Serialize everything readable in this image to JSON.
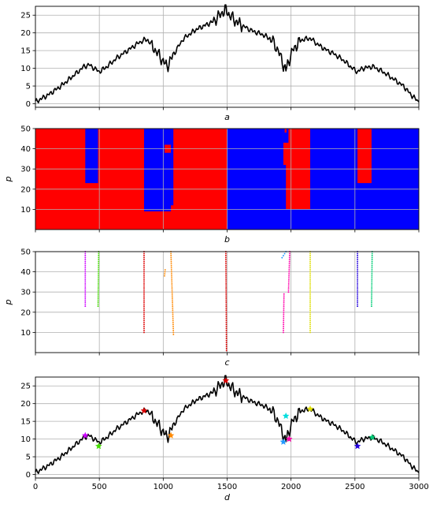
{
  "chart_data": [
    {
      "panel": "a",
      "type": "line",
      "xlabel": "a",
      "ylabel": "",
      "xlim": [
        0,
        3000
      ],
      "ylim": [
        -1,
        27.5
      ],
      "grid": true,
      "x_ticks": [
        0,
        500,
        1000,
        1500,
        2000,
        2500,
        3000
      ],
      "y_ticks": [
        0,
        5,
        10,
        15,
        20,
        25
      ],
      "y_tick_labels": [
        "0",
        "5",
        "10",
        "15",
        "20",
        "25"
      ],
      "x_tick_labels": [
        "",
        "",
        "",
        "",
        "",
        "",
        ""
      ],
      "series": [
        {
          "color": "#000000",
          "x": [
            0,
            100,
            200,
            300,
            380,
            420,
            460,
            500,
            560,
            640,
            720,
            800,
            850,
            880,
            920,
            960,
            1000,
            1030,
            1060,
            1100,
            1150,
            1200,
            1260,
            1320,
            1380,
            1430,
            1470,
            1490,
            1520,
            1560,
            1620,
            1700,
            1780,
            1850,
            1900,
            1940,
            1960,
            1980,
            2020,
            2080,
            2150,
            2200,
            2260,
            2340,
            2420,
            2480,
            2520,
            2560,
            2640,
            2720,
            2800,
            2880,
            2940,
            3000
          ],
          "y": [
            0.5,
            2.5,
            5,
            8,
            10.5,
            11,
            10,
            9,
            10.5,
            13,
            15,
            17,
            18,
            18,
            16,
            14,
            12,
            10.5,
            12.5,
            15,
            18,
            19.5,
            21,
            22,
            23,
            24.5,
            26,
            26.5,
            25,
            23.5,
            22,
            20.5,
            19.5,
            18,
            15,
            11,
            9.5,
            12,
            15.5,
            18,
            18.5,
            17,
            15.5,
            14,
            12,
            10,
            9,
            10,
            10.5,
            9,
            7,
            5,
            2.5,
            0.5
          ]
        }
      ]
    },
    {
      "panel": "b",
      "type": "heatmap",
      "xlabel": "b",
      "ylabel": "p",
      "xlim": [
        0,
        3000
      ],
      "ylim": [
        0,
        50
      ],
      "grid": true,
      "x_ticks": [
        0,
        500,
        1000,
        1500,
        2000,
        2500,
        3000
      ],
      "y_ticks": [
        10,
        20,
        30,
        40,
        50
      ],
      "y_tick_labels": [
        "10",
        "20",
        "30",
        "40",
        "50"
      ],
      "x_tick_labels": [
        "",
        "",
        "",
        "",
        "",
        "",
        ""
      ],
      "colors": {
        "up": "#ff0000",
        "down": "#0000ff"
      },
      "regions": [
        {
          "x0": 0,
          "x1": 1500,
          "y0": 0,
          "y1": 50,
          "color": "#ff0000"
        },
        {
          "x0": 1500,
          "x1": 3000,
          "y0": 0,
          "y1": 50,
          "color": "#0000ff"
        },
        {
          "x0": 390,
          "x1": 490,
          "y0": 23,
          "y1": 50,
          "color": "#0000ff"
        },
        {
          "x0": 850,
          "x1": 1060,
          "y0": 9,
          "y1": 50,
          "color": "#0000ff"
        },
        {
          "x0": 1010,
          "x1": 1060,
          "y0": 38,
          "y1": 42,
          "color": "#ff0000"
        },
        {
          "x0": 1060,
          "x1": 1080,
          "y0": 12,
          "y1": 50,
          "color": "#0000ff"
        },
        {
          "x0": 1080,
          "x1": 1500,
          "y0": 0,
          "y1": 50,
          "color": "#ff0000"
        },
        {
          "x0": 1940,
          "x1": 2150,
          "y0": 10,
          "y1": 50,
          "color": "#ff0000"
        },
        {
          "x0": 1940,
          "x1": 1960,
          "y0": 10,
          "y1": 32,
          "color": "#0000ff"
        },
        {
          "x0": 1940,
          "x1": 1980,
          "y0": 43,
          "y1": 50,
          "color": "#0000ff"
        },
        {
          "x0": 1950,
          "x1": 1965,
          "y0": 48,
          "y1": 50,
          "color": "#ff0000"
        },
        {
          "x0": 2520,
          "x1": 2630,
          "y0": 23,
          "y1": 50,
          "color": "#ff0000"
        }
      ]
    },
    {
      "panel": "c",
      "type": "scatter",
      "xlabel": "c",
      "ylabel": "p",
      "xlim": [
        0,
        3000
      ],
      "ylim": [
        0,
        50
      ],
      "grid": true,
      "x_ticks": [
        0,
        500,
        1000,
        1500,
        2000,
        2500,
        3000
      ],
      "y_ticks": [
        10,
        20,
        30,
        40,
        50
      ],
      "y_tick_labels": [
        "10",
        "20",
        "30",
        "40",
        "50"
      ],
      "x_tick_labels": [
        "",
        "",
        "",
        "",
        "",
        "",
        ""
      ],
      "series": [
        {
          "color": "#cc00ff",
          "x0": 390,
          "x1": 390,
          "p_from": 23,
          "p_to": 50
        },
        {
          "color": "#44dd00",
          "x0": 490,
          "x1": 495,
          "p_from": 23,
          "p_to": 50
        },
        {
          "color": "#dd0000",
          "x0": 850,
          "x1": 850,
          "p_from": 10,
          "p_to": 50
        },
        {
          "color": "#ff8800",
          "x0": 1080,
          "x1": 1060,
          "p_from": 9,
          "p_to": 50
        },
        {
          "color": "#ff8800",
          "x0": 1010,
          "x1": 1015,
          "p_from": 38,
          "p_to": 41
        },
        {
          "color": "#dd0000",
          "x0": 1495,
          "x1": 1490,
          "p_from": 1,
          "p_to": 50
        },
        {
          "color": "#ff00aa",
          "x0": 1940,
          "x1": 1945,
          "p_from": 10,
          "p_to": 29
        },
        {
          "color": "#ff00aa",
          "x0": 1980,
          "x1": 1990,
          "p_from": 30,
          "p_to": 50
        },
        {
          "color": "#2299ff",
          "x0": 1930,
          "x1": 1960,
          "p_from": 47,
          "p_to": 50
        },
        {
          "color": "#dddd00",
          "x0": 2150,
          "x1": 2150,
          "p_from": 10,
          "p_to": 50
        },
        {
          "color": "#2200dd",
          "x0": 2520,
          "x1": 2520,
          "p_from": 23,
          "p_to": 50
        },
        {
          "color": "#00cc77",
          "x0": 2630,
          "x1": 2635,
          "p_from": 23,
          "p_to": 50
        }
      ]
    },
    {
      "panel": "d",
      "type": "line",
      "xlabel": "d",
      "ylabel": "",
      "xlim": [
        0,
        3000
      ],
      "ylim": [
        -1,
        27.5
      ],
      "grid": true,
      "x_ticks": [
        0,
        500,
        1000,
        1500,
        2000,
        2500,
        3000
      ],
      "x_tick_labels": [
        "0",
        "500",
        "1000",
        "1500",
        "2000",
        "2500",
        "3000"
      ],
      "y_ticks": [
        0,
        5,
        10,
        15,
        20,
        25
      ],
      "y_tick_labels": [
        "0",
        "5",
        "10",
        "15",
        "20",
        "25"
      ],
      "markers": [
        {
          "x": 390,
          "y": 11,
          "color": "#cc00ff"
        },
        {
          "x": 495,
          "y": 8,
          "color": "#44dd00"
        },
        {
          "x": 850,
          "y": 18,
          "color": "#dd0000"
        },
        {
          "x": 1060,
          "y": 11,
          "color": "#ff8800"
        },
        {
          "x": 1490,
          "y": 26.5,
          "color": "#dd0000"
        },
        {
          "x": 1940,
          "y": 9.2,
          "color": "#2299ff"
        },
        {
          "x": 1960,
          "y": 16.5,
          "color": "#00dddd"
        },
        {
          "x": 1985,
          "y": 10,
          "color": "#ff00aa"
        },
        {
          "x": 2150,
          "y": 18.5,
          "color": "#dddd00"
        },
        {
          "x": 2520,
          "y": 8,
          "color": "#2200dd"
        },
        {
          "x": 2635,
          "y": 10.5,
          "color": "#00cc77"
        }
      ]
    }
  ]
}
